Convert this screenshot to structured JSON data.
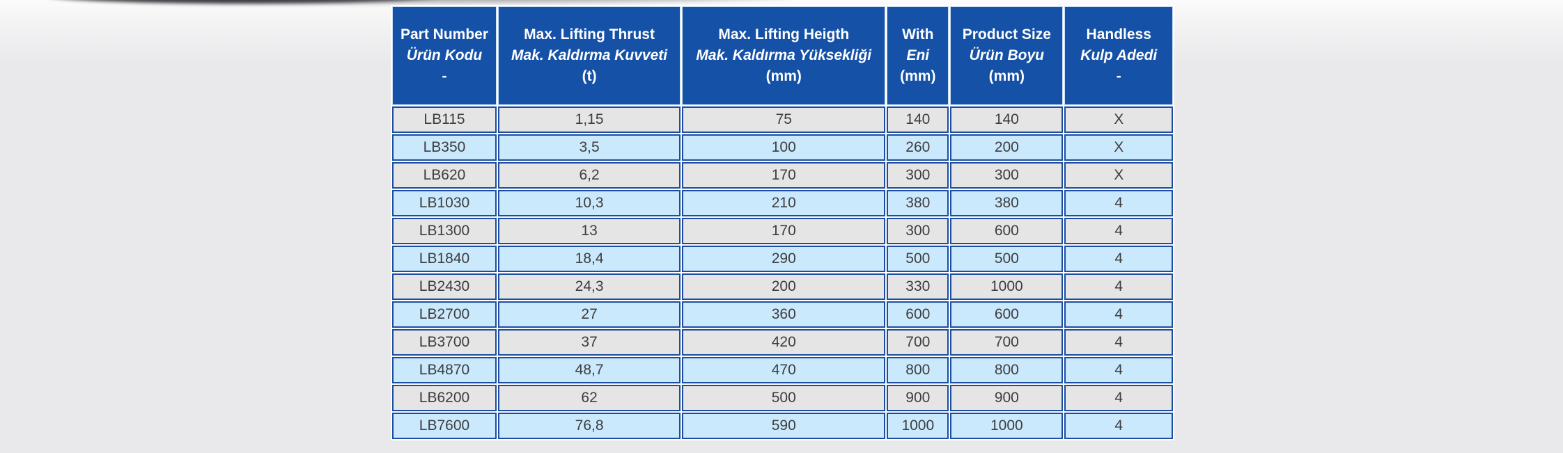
{
  "page": {
    "background_color": "#e9e9eb"
  },
  "table": {
    "columns": [
      {
        "key": "part-number",
        "en": "Part Number",
        "tr": "Ürün Kodu",
        "unit": "-"
      },
      {
        "key": "max-lifting-thrust",
        "en": "Max. Lifting Thrust",
        "tr": "Mak. Kaldırma Kuvveti",
        "unit": "(t)"
      },
      {
        "key": "max-lifting-height",
        "en": "Max. Lifting Heigth",
        "tr": "Mak. Kaldırma Yüksekliği",
        "unit": "(mm)"
      },
      {
        "key": "width",
        "en": "With",
        "tr": "Eni",
        "unit": "(mm)"
      },
      {
        "key": "product-size",
        "en": "Product Size",
        "tr": "Ürün Boyu",
        "unit": "(mm)"
      },
      {
        "key": "handles",
        "en": "Handless",
        "tr": "Kulp Adedi",
        "unit": "-"
      }
    ],
    "rows": [
      [
        "LB115",
        "1,15",
        "75",
        "140",
        "140",
        "X"
      ],
      [
        "LB350",
        "3,5",
        "100",
        "260",
        "200",
        "X"
      ],
      [
        "LB620",
        "6,2",
        "170",
        "300",
        "300",
        "X"
      ],
      [
        "LB1030",
        "10,3",
        "210",
        "380",
        "380",
        "4"
      ],
      [
        "LB1300",
        "13",
        "170",
        "300",
        "600",
        "4"
      ],
      [
        "LB1840",
        "18,4",
        "290",
        "500",
        "500",
        "4"
      ],
      [
        "LB2430",
        "24,3",
        "200",
        "330",
        "1000",
        "4"
      ],
      [
        "LB2700",
        "27",
        "360",
        "600",
        "600",
        "4"
      ],
      [
        "LB3700",
        "37",
        "420",
        "700",
        "700",
        "4"
      ],
      [
        "LB4870",
        "48,7",
        "470",
        "800",
        "800",
        "4"
      ],
      [
        "LB6200",
        "62",
        "500",
        "900",
        "900",
        "4"
      ],
      [
        "LB7600",
        "76,8",
        "590",
        "1000",
        "1000",
        "4"
      ]
    ],
    "colors": {
      "header_bg": "#1551a6",
      "header_text": "#ffffff",
      "row_gray": "#e5e5e6",
      "row_blue": "#cbe9fc",
      "border_navy": "#1c4da0",
      "border_light": "#c7ddf2",
      "cell_text": "#3d3d3f"
    }
  }
}
